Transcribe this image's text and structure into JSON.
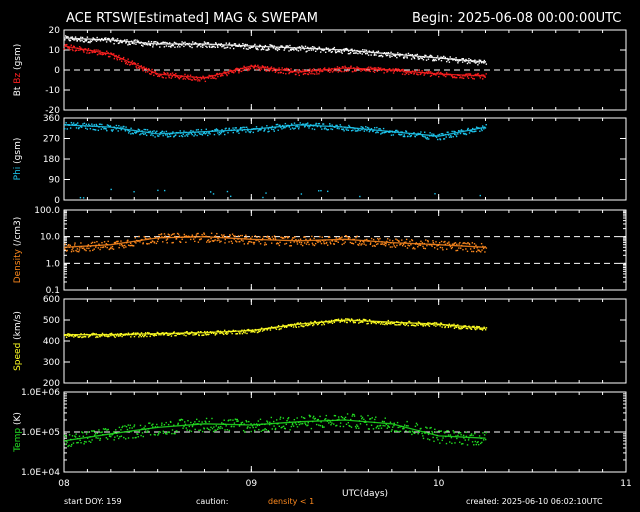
{
  "header": {
    "title": "ACE RTSW[Estimated] MAG & SWEPAM",
    "begin": "Begin: 2025-06-08 00:00:00UTC"
  },
  "footer": {
    "start_doy": "start DOY: 159",
    "caution": "caution:",
    "density_note": "density < 1",
    "created": "created: 2025-06-10 06:02:10UTC"
  },
  "colors": {
    "bt": "#ffffff",
    "bz": "#ff2020",
    "phi": "#1ec8f0",
    "density": "#ff8a1e",
    "speed": "#ffff22",
    "temp": "#22e022",
    "axis": "#ffffff"
  },
  "chart_data": {
    "type": "scatter",
    "x_axis": {
      "label": "UTC(days)",
      "range_days": [
        0,
        3
      ],
      "ticks": [
        0,
        1,
        2,
        3
      ],
      "tick_labels": [
        "08",
        "09",
        "10",
        "11"
      ],
      "data_end_days": 2.25
    },
    "panels": [
      {
        "id": "bt-bz",
        "ylabel_a": "Bt",
        "ylabel_b": "Bz",
        "ylabel_c": "(gsm)",
        "scale": "linear",
        "ylim": [
          -20,
          20
        ],
        "ticks": [
          -20,
          -10,
          0,
          10,
          20
        ],
        "tick_labels": [
          "-20",
          "-10",
          "0",
          "10",
          "20"
        ],
        "ref_lines": [
          0
        ],
        "series": [
          {
            "name": "Bt",
            "color_key": "bt",
            "x": [
              0.0,
              0.25,
              0.5,
              0.75,
              1.0,
              1.25,
              1.5,
              1.75,
              2.0,
              2.25
            ],
            "values": [
              16,
              15,
              13,
              13,
              12,
              11,
              10,
              8,
              6,
              4
            ]
          },
          {
            "name": "Bz",
            "color_key": "bz",
            "x": [
              0.0,
              0.25,
              0.5,
              0.75,
              1.0,
              1.25,
              1.5,
              1.75,
              2.0,
              2.25
            ],
            "values": [
              12,
              8,
              -2,
              -4,
              2,
              -1,
              1,
              0,
              -2,
              -3
            ]
          }
        ]
      },
      {
        "id": "phi",
        "ylabel_a": "Phi",
        "ylabel_c": "(gsm)",
        "scale": "linear",
        "ylim": [
          0,
          360
        ],
        "ticks": [
          0,
          90,
          180,
          270,
          360
        ],
        "tick_labels": [
          "0",
          "90",
          "180",
          "270",
          "360"
        ],
        "ref_lines": [],
        "series": [
          {
            "name": "Phi",
            "color_key": "phi",
            "x": [
              0.0,
              0.25,
              0.5,
              0.75,
              1.0,
              1.25,
              1.5,
              1.75,
              2.0,
              2.25
            ],
            "values": [
              330,
              320,
              290,
              300,
              310,
              330,
              320,
              300,
              280,
              320
            ]
          }
        ]
      },
      {
        "id": "density",
        "ylabel_a": "Density",
        "ylabel_c": "(/cm3)",
        "scale": "log",
        "ylim": [
          0.1,
          100
        ],
        "ticks": [
          0.1,
          1,
          10,
          100
        ],
        "tick_labels": [
          "0.1",
          "1.0",
          "10.0",
          "100.0"
        ],
        "ref_lines": [
          1,
          10
        ],
        "series": [
          {
            "name": "Density",
            "color_key": "density",
            "x": [
              0.0,
              0.25,
              0.5,
              0.75,
              1.0,
              1.25,
              1.5,
              1.75,
              2.0,
              2.25
            ],
            "values": [
              4,
              5,
              9,
              10,
              8,
              7,
              8,
              6,
              5,
              4
            ]
          }
        ]
      },
      {
        "id": "speed",
        "ylabel_a": "Speed",
        "ylabel_c": "(km/s)",
        "scale": "linear",
        "ylim": [
          200,
          600
        ],
        "ticks": [
          200,
          300,
          400,
          500,
          600
        ],
        "tick_labels": [
          "200",
          "300",
          "400",
          "500",
          "600"
        ],
        "ref_lines": [],
        "series": [
          {
            "name": "Speed",
            "color_key": "speed",
            "x": [
              0.0,
              0.25,
              0.5,
              0.75,
              1.0,
              1.25,
              1.5,
              1.75,
              2.0,
              2.25
            ],
            "values": [
              430,
              430,
              435,
              440,
              450,
              480,
              500,
              490,
              480,
              460
            ]
          }
        ]
      },
      {
        "id": "temp",
        "ylabel_a": "Temp",
        "ylabel_c": "(K)",
        "scale": "log",
        "ylim": [
          10000,
          1000000
        ],
        "ticks": [
          10000,
          100000,
          1000000
        ],
        "tick_labels": [
          "1.0E+04",
          "1.0E+05",
          "1.0E+06"
        ],
        "ref_lines": [
          100000
        ],
        "series": [
          {
            "name": "Temp",
            "color_key": "temp",
            "x": [
              0.0,
              0.25,
              0.5,
              0.75,
              1.0,
              1.25,
              1.5,
              1.75,
              2.0,
              2.25
            ],
            "values": [
              60000,
              90000,
              130000,
              160000,
              150000,
              180000,
              200000,
              160000,
              80000,
              70000
            ]
          }
        ]
      }
    ]
  }
}
